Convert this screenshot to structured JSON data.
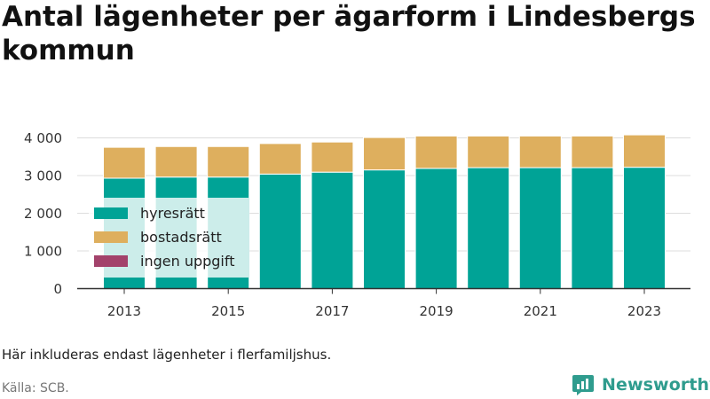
{
  "title": "Antal lägenheter per ägarform i Lindesbergs kommun",
  "note": "Här inkluderas endast lägenheter i flerfamiljshus.",
  "source": "Källa: SCB.",
  "brand": {
    "name": "Newsworthy",
    "logo_icon": "newsworthy-logo-icon"
  },
  "colors": {
    "hyresratt": "#00a396",
    "bostadsratt": "#deaf5e",
    "ingen_uppgift": "#a3426b",
    "grid": "#dddddd",
    "axis": "#333333"
  },
  "chart_data": {
    "type": "bar",
    "stacked": true,
    "title": "Antal lägenheter per ägarform i Lindesbergs kommun",
    "categories": [
      "2013",
      "2014",
      "2015",
      "2016",
      "2017",
      "2018",
      "2019",
      "2020",
      "2021",
      "2022",
      "2023"
    ],
    "x_tick_labels": [
      "2013",
      "2015",
      "2017",
      "2019",
      "2021",
      "2023"
    ],
    "y_tick_labels": [
      "0",
      "1 000",
      "2 000",
      "3 000",
      "4 000"
    ],
    "ylim": [
      0,
      4300
    ],
    "yticks": [
      0,
      1000,
      2000,
      3000,
      4000
    ],
    "grid": true,
    "legend_position": "bottom-left",
    "series": [
      {
        "name": "hyresrätt",
        "color": "#00a396",
        "values": [
          2930,
          2960,
          2960,
          3040,
          3090,
          3150,
          3190,
          3210,
          3210,
          3210,
          3220
        ]
      },
      {
        "name": "bostadsrätt",
        "color": "#deaf5e",
        "values": [
          820,
          810,
          810,
          810,
          800,
          860,
          860,
          840,
          840,
          840,
          860
        ]
      },
      {
        "name": "ingen uppgift",
        "color": "#a3426b",
        "values": [
          0,
          0,
          0,
          0,
          0,
          0,
          0,
          0,
          0,
          0,
          0
        ]
      }
    ]
  }
}
